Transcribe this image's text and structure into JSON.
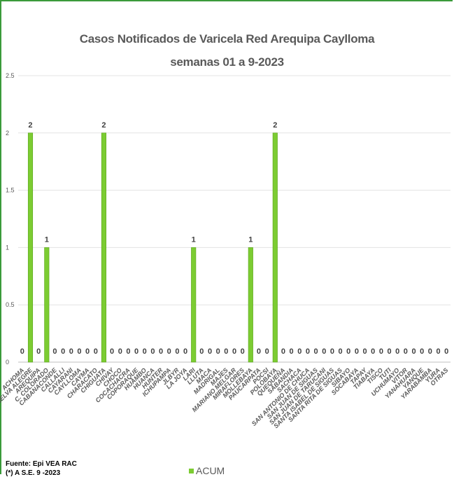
{
  "chart_data": {
    "type": "bar",
    "title": "Casos Notificados de Varicela Red Arequipa Caylloma",
    "subtitle": "semanas 01 a 9-2023",
    "ylim": [
      0,
      2.5
    ],
    "yticks": [
      "0",
      "0.5",
      "1",
      "1.5",
      "2",
      "2.5"
    ],
    "grid": true,
    "legend_position": "bottom",
    "categories": [
      "ACHOMA",
      "SELVA ALEGRE",
      "AREQUIPA",
      "C. COLORADO",
      "CABANACONDE",
      "CALLALLI",
      "CAYARANI",
      "CAYLLOMA",
      "CAYMA",
      "CHARACATO",
      "CHIGUATA",
      "CHIVAY",
      "CHOCO",
      "COCACHACRA",
      "COPORAQUE",
      "HUAMBO",
      "HUANCA",
      "HUNTER",
      "ICHUPAMPA",
      "JLBYR",
      "LA JOYA",
      "LARI",
      "LLUTA",
      "MACA",
      "MADRIGAL",
      "MAJES",
      "MARIANO MELGAR",
      "MIRAFLORES",
      "MOLLEBAYA",
      "PAUCARPATA",
      "POCSI",
      "POLOBAYA",
      "QUEQUEÑA",
      "SABANDIA",
      "SACHACA",
      "SAN ANTONIO DE CHUCA",
      "SAN JUAN DE SIGUAS",
      "SAN JUAN DE TARUCANI",
      "SANTA ISABEL DE SIGUAS",
      "SANTA RITA DE SIGUAS",
      "SIBAYO",
      "SOCABAYA",
      "TAPAY",
      "TIABAYA",
      "TISCO",
      "TUTI",
      "UCHUMAYO",
      "VITOR",
      "YANAHUARA",
      "YANQUE",
      "YARABAMBA",
      "YURA",
      "OTRAS"
    ],
    "series": [
      {
        "name": "ACUM",
        "color": "#7ccc32",
        "values": [
          0,
          2,
          0,
          1,
          0,
          0,
          0,
          0,
          0,
          0,
          2,
          0,
          0,
          0,
          0,
          0,
          0,
          0,
          0,
          0,
          0,
          1,
          0,
          0,
          0,
          0,
          0,
          0,
          1,
          0,
          0,
          2,
          0,
          0,
          0,
          0,
          0,
          0,
          0,
          0,
          0,
          0,
          0,
          0,
          0,
          0,
          0,
          0,
          0,
          0,
          0,
          0,
          0
        ]
      }
    ]
  },
  "legend": {
    "label": "ACUM"
  },
  "footer": {
    "source": "Fuente: Epi VEA RAC",
    "week": "(*) A S.E. 9 -2023"
  }
}
